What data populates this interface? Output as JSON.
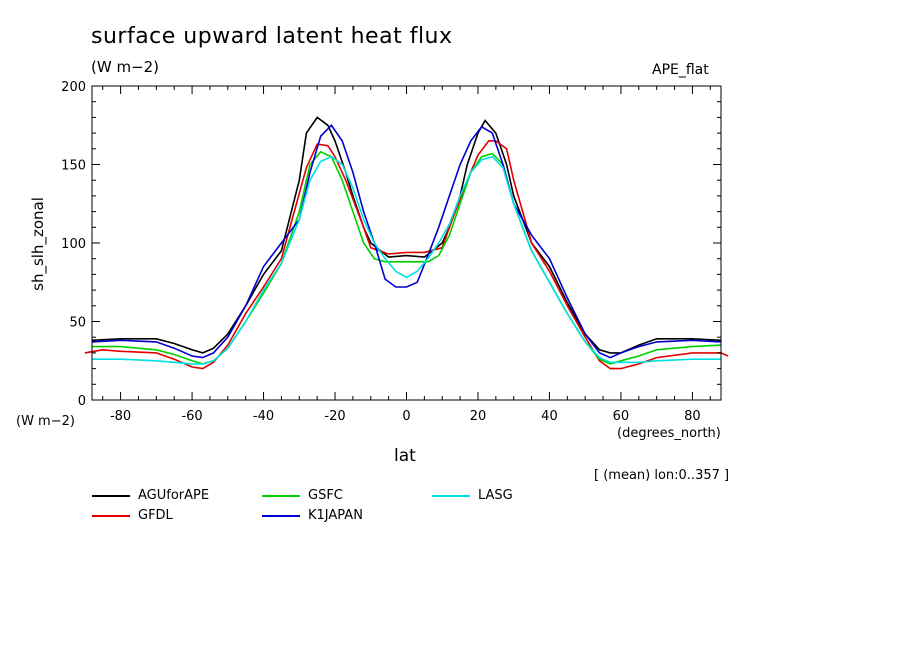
{
  "header": {
    "title": "surface upward latent heat flux",
    "units": "(W m−2)",
    "run": "APE_flat",
    "y_units": "(W m−2)",
    "x_units": "(degrees_north)",
    "note": "[ (mean) lon:0..357 ]"
  },
  "chart_data": {
    "type": "line",
    "title": "surface upward latent heat flux",
    "xlabel": "lat",
    "ylabel": "sh_slh_zonal",
    "xlim": [
      -88,
      88
    ],
    "ylim": [
      0,
      200
    ],
    "x_ticks": [
      -80,
      -60,
      -40,
      -20,
      0,
      20,
      40,
      60,
      80
    ],
    "y_ticks": [
      0,
      50,
      100,
      150,
      200
    ],
    "grid": false,
    "legend": "below",
    "series": [
      {
        "name": "AGUforAPE",
        "color": "#000000",
        "x": [
          -88,
          -80,
          -70,
          -65,
          -60,
          -57,
          -54,
          -50,
          -45,
          -40,
          -35,
          -30,
          -28,
          -25,
          -22,
          -20,
          -17,
          -15,
          -12,
          -10,
          -5,
          0,
          5,
          10,
          12,
          15,
          17,
          20,
          22,
          25,
          28,
          30,
          35,
          40,
          45,
          50,
          54,
          57,
          60,
          65,
          70,
          80,
          88
        ],
        "y": [
          38,
          39,
          39,
          36,
          32,
          30,
          33,
          42,
          60,
          80,
          95,
          140,
          170,
          180,
          175,
          165,
          145,
          130,
          110,
          100,
          91,
          92,
          91,
          100,
          110,
          130,
          150,
          170,
          178,
          170,
          150,
          130,
          100,
          85,
          62,
          42,
          32,
          30,
          30,
          35,
          39,
          39,
          38
        ]
      },
      {
        "name": "GFDL",
        "color": "#e00000",
        "x": [
          -90,
          -85,
          -80,
          -70,
          -65,
          -60,
          -57,
          -54,
          -50,
          -45,
          -40,
          -35,
          -32,
          -28,
          -25,
          -22,
          -20,
          -17,
          -15,
          -12,
          -10,
          -5,
          0,
          5,
          10,
          12,
          15,
          17,
          20,
          23,
          25,
          28,
          30,
          35,
          40,
          45,
          50,
          54,
          57,
          60,
          65,
          70,
          80,
          88,
          90
        ],
        "y": [
          30,
          32,
          31,
          30,
          26,
          21,
          20,
          24,
          35,
          55,
          72,
          90,
          115,
          148,
          163,
          162,
          155,
          140,
          128,
          110,
          97,
          93,
          94,
          94,
          97,
          110,
          128,
          140,
          156,
          165,
          165,
          160,
          140,
          100,
          82,
          60,
          40,
          25,
          20,
          20,
          23,
          27,
          30,
          30,
          28
        ]
      },
      {
        "name": "GSFC",
        "color": "#00d000",
        "x": [
          -88,
          -80,
          -70,
          -65,
          -60,
          -57,
          -54,
          -50,
          -45,
          -40,
          -35,
          -30,
          -27,
          -24,
          -21,
          -18,
          -15,
          -12,
          -9,
          -6,
          -3,
          0,
          3,
          6,
          9,
          12,
          15,
          18,
          21,
          24,
          27,
          30,
          35,
          40,
          45,
          50,
          54,
          57,
          60,
          65,
          70,
          80,
          88
        ],
        "y": [
          34,
          34,
          32,
          29,
          25,
          23,
          25,
          33,
          50,
          68,
          87,
          120,
          150,
          158,
          155,
          140,
          120,
          100,
          90,
          88,
          88,
          88,
          88,
          88,
          92,
          105,
          125,
          145,
          155,
          157,
          150,
          125,
          95,
          75,
          55,
          37,
          26,
          23,
          25,
          28,
          32,
          34,
          35
        ]
      },
      {
        "name": "K1JAPAN",
        "color": "#0000d0",
        "x": [
          -88,
          -80,
          -70,
          -65,
          -60,
          -57,
          -54,
          -50,
          -45,
          -40,
          -35,
          -30,
          -27,
          -24,
          -21,
          -18,
          -15,
          -12,
          -9,
          -6,
          -3,
          0,
          3,
          6,
          9,
          12,
          15,
          18,
          21,
          24,
          27,
          30,
          35,
          40,
          45,
          50,
          54,
          57,
          60,
          65,
          70,
          80,
          88
        ],
        "y": [
          37,
          38,
          37,
          33,
          28,
          27,
          30,
          40,
          60,
          85,
          100,
          115,
          145,
          168,
          175,
          165,
          145,
          120,
          100,
          77,
          72,
          72,
          75,
          92,
          110,
          130,
          150,
          165,
          174,
          170,
          150,
          125,
          105,
          90,
          65,
          42,
          30,
          27,
          30,
          34,
          37,
          38,
          37
        ]
      },
      {
        "name": "LASG",
        "color": "#00e0e0",
        "x": [
          -88,
          -80,
          -70,
          -65,
          -60,
          -57,
          -54,
          -50,
          -45,
          -40,
          -35,
          -30,
          -27,
          -24,
          -21,
          -18,
          -15,
          -12,
          -9,
          -6,
          -3,
          0,
          3,
          6,
          9,
          12,
          15,
          18,
          21,
          24,
          27,
          30,
          35,
          40,
          45,
          50,
          54,
          57,
          60,
          65,
          70,
          80,
          88
        ],
        "y": [
          26,
          26,
          25,
          24,
          23,
          23,
          25,
          33,
          50,
          70,
          87,
          115,
          140,
          152,
          155,
          150,
          135,
          115,
          100,
          90,
          82,
          78,
          82,
          90,
          100,
          112,
          130,
          145,
          153,
          155,
          148,
          125,
          95,
          75,
          55,
          37,
          27,
          24,
          24,
          24,
          25,
          26,
          26
        ]
      }
    ]
  }
}
